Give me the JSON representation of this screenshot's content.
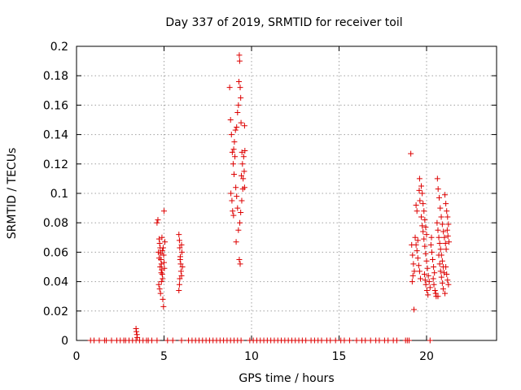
{
  "chart_data": {
    "type": "scatter",
    "title": "Day 337 of 2019, SRMTID for receiver toil",
    "xlabel": "GPS time / hours",
    "ylabel": "SRMTID / TECUs",
    "xlim": [
      0,
      24
    ],
    "ylim": [
      0,
      0.2
    ],
    "xticks": [
      0,
      5,
      10,
      15,
      20
    ],
    "xtick_labels": [
      "0",
      "5",
      "10",
      "15",
      "20"
    ],
    "yticks": [
      0,
      0.02,
      0.04,
      0.06,
      0.08,
      0.1,
      0.12,
      0.14,
      0.16,
      0.18,
      0.2
    ],
    "ytick_labels": [
      "0",
      "0.02",
      "0.04",
      "0.06",
      "0.08",
      "0.1",
      "0.12",
      "0.14",
      "0.16",
      "0.18",
      "0.2"
    ],
    "grid": true,
    "marker": "+",
    "color": "#dd0000",
    "series": [
      {
        "name": "SRMTID",
        "points": [
          [
            0.8,
            0
          ],
          [
            1.0,
            0
          ],
          [
            1.3,
            0
          ],
          [
            1.6,
            0
          ],
          [
            1.7,
            0
          ],
          [
            2.0,
            0
          ],
          [
            2.3,
            0
          ],
          [
            2.5,
            0
          ],
          [
            2.7,
            0
          ],
          [
            2.8,
            0
          ],
          [
            3.0,
            0
          ],
          [
            3.2,
            0
          ],
          [
            3.4,
            0
          ],
          [
            3.6,
            0
          ],
          [
            3.8,
            0
          ],
          [
            4.0,
            0
          ],
          [
            4.1,
            0
          ],
          [
            4.3,
            0
          ],
          [
            4.6,
            0
          ],
          [
            5.2,
            0
          ],
          [
            5.5,
            0
          ],
          [
            6.0,
            0
          ],
          [
            6.4,
            0
          ],
          [
            6.6,
            0
          ],
          [
            6.8,
            0
          ],
          [
            7.0,
            0
          ],
          [
            7.2,
            0
          ],
          [
            7.4,
            0
          ],
          [
            7.6,
            0
          ],
          [
            7.8,
            0
          ],
          [
            8.0,
            0
          ],
          [
            8.2,
            0
          ],
          [
            8.4,
            0
          ],
          [
            8.6,
            0
          ],
          [
            8.8,
            0
          ],
          [
            9.0,
            0
          ],
          [
            9.2,
            0
          ],
          [
            9.4,
            0
          ],
          [
            9.9,
            0
          ],
          [
            10.1,
            0
          ],
          [
            10.3,
            0
          ],
          [
            10.5,
            0
          ],
          [
            10.7,
            0
          ],
          [
            10.9,
            0
          ],
          [
            11.1,
            0
          ],
          [
            11.3,
            0
          ],
          [
            11.5,
            0
          ],
          [
            11.7,
            0
          ],
          [
            11.9,
            0
          ],
          [
            12.1,
            0
          ],
          [
            12.3,
            0
          ],
          [
            12.5,
            0
          ],
          [
            12.7,
            0
          ],
          [
            12.9,
            0
          ],
          [
            13.1,
            0
          ],
          [
            13.4,
            0
          ],
          [
            13.6,
            0
          ],
          [
            13.8,
            0
          ],
          [
            14.0,
            0
          ],
          [
            14.3,
            0
          ],
          [
            14.5,
            0
          ],
          [
            14.8,
            0
          ],
          [
            15.1,
            0
          ],
          [
            15.3,
            0
          ],
          [
            15.6,
            0
          ],
          [
            16.0,
            0
          ],
          [
            16.3,
            0
          ],
          [
            16.5,
            0
          ],
          [
            16.8,
            0
          ],
          [
            17.1,
            0
          ],
          [
            17.3,
            0
          ],
          [
            17.6,
            0
          ],
          [
            17.8,
            0
          ],
          [
            18.1,
            0
          ],
          [
            18.3,
            0
          ],
          [
            18.8,
            0
          ],
          [
            18.9,
            0
          ],
          [
            19.0,
            0
          ],
          [
            20.2,
            0
          ],
          [
            3.4,
            0.008
          ],
          [
            3.42,
            0.006
          ],
          [
            3.45,
            0.004
          ],
          [
            3.47,
            0.002
          ],
          [
            4.6,
            0.08
          ],
          [
            4.65,
            0.082
          ],
          [
            4.72,
            0.069
          ],
          [
            4.75,
            0.066
          ],
          [
            4.78,
            0.063
          ],
          [
            4.8,
            0.059
          ],
          [
            4.82,
            0.055
          ],
          [
            4.85,
            0.052
          ],
          [
            4.87,
            0.048
          ],
          [
            4.9,
            0.045
          ],
          [
            4.92,
            0.042
          ],
          [
            4.7,
            0.038
          ],
          [
            4.75,
            0.035
          ],
          [
            4.8,
            0.032
          ],
          [
            4.68,
            0.06
          ],
          [
            4.72,
            0.056
          ],
          [
            4.78,
            0.05
          ],
          [
            4.84,
            0.046
          ],
          [
            4.88,
            0.07
          ],
          [
            4.95,
            0.063
          ],
          [
            4.98,
            0.058
          ],
          [
            5.0,
            0.053
          ],
          [
            5.02,
            0.049
          ],
          [
            5.05,
            0.067
          ],
          [
            4.93,
            0.028
          ],
          [
            4.97,
            0.023
          ],
          [
            5.0,
            0.088
          ],
          [
            4.85,
            0.04
          ],
          [
            4.9,
            0.061
          ],
          [
            5.85,
            0.072
          ],
          [
            5.88,
            0.068
          ],
          [
            5.9,
            0.063
          ],
          [
            5.93,
            0.057
          ],
          [
            5.95,
            0.052
          ],
          [
            5.97,
            0.047
          ],
          [
            5.9,
            0.042
          ],
          [
            5.88,
            0.038
          ],
          [
            5.85,
            0.034
          ],
          [
            6.0,
            0.065
          ],
          [
            6.02,
            0.06
          ],
          [
            6.05,
            0.05
          ],
          [
            6.0,
            0.044
          ],
          [
            5.92,
            0.055
          ],
          [
            8.75,
            0.172
          ],
          [
            8.8,
            0.15
          ],
          [
            8.85,
            0.14
          ],
          [
            8.9,
            0.128
          ],
          [
            8.95,
            0.12
          ],
          [
            9.0,
            0.113
          ],
          [
            8.82,
            0.1
          ],
          [
            8.88,
            0.095
          ],
          [
            8.92,
            0.088
          ],
          [
            8.97,
            0.085
          ],
          [
            9.02,
            0.135
          ],
          [
            9.05,
            0.125
          ],
          [
            9.1,
            0.104
          ],
          [
            9.15,
            0.098
          ],
          [
            9.2,
            0.09
          ],
          [
            9.25,
            0.075
          ],
          [
            9.12,
            0.067
          ],
          [
            9.3,
            0.055
          ],
          [
            9.35,
            0.052
          ],
          [
            9.3,
            0.194
          ],
          [
            9.32,
            0.19
          ],
          [
            9.28,
            0.176
          ],
          [
            9.35,
            0.172
          ],
          [
            9.38,
            0.165
          ],
          [
            9.25,
            0.16
          ],
          [
            9.4,
            0.148
          ],
          [
            9.45,
            0.128
          ],
          [
            9.48,
            0.12
          ],
          [
            9.42,
            0.112
          ],
          [
            9.5,
            0.103
          ],
          [
            9.44,
            0.095
          ],
          [
            9.38,
            0.087
          ],
          [
            9.33,
            0.08
          ],
          [
            9.2,
            0.155
          ],
          [
            9.15,
            0.145
          ],
          [
            9.08,
            0.143
          ],
          [
            8.98,
            0.13
          ],
          [
            9.6,
            0.146
          ],
          [
            9.55,
            0.125
          ],
          [
            9.58,
            0.115
          ],
          [
            9.52,
            0.11
          ],
          [
            9.6,
            0.104
          ],
          [
            9.62,
            0.129
          ],
          [
            19.1,
            0.127
          ],
          [
            19.15,
            0.065
          ],
          [
            19.2,
            0.058
          ],
          [
            19.25,
            0.052
          ],
          [
            19.3,
            0.047
          ],
          [
            19.22,
            0.044
          ],
          [
            19.18,
            0.04
          ],
          [
            19.28,
            0.021
          ],
          [
            19.35,
            0.07
          ],
          [
            19.4,
            0.065
          ],
          [
            19.45,
            0.061
          ],
          [
            19.5,
            0.056
          ],
          [
            19.55,
            0.051
          ],
          [
            19.6,
            0.047
          ],
          [
            19.65,
            0.042
          ],
          [
            19.7,
            0.105
          ],
          [
            19.75,
            0.1
          ],
          [
            19.8,
            0.093
          ],
          [
            19.85,
            0.088
          ],
          [
            19.9,
            0.082
          ],
          [
            19.95,
            0.077
          ],
          [
            20.0,
            0.072
          ],
          [
            19.6,
            0.11
          ],
          [
            19.58,
            0.102
          ],
          [
            19.62,
            0.095
          ],
          [
            19.7,
            0.084
          ],
          [
            19.75,
            0.078
          ],
          [
            19.8,
            0.074
          ],
          [
            19.85,
            0.069
          ],
          [
            19.9,
            0.064
          ],
          [
            19.95,
            0.059
          ],
          [
            20.0,
            0.054
          ],
          [
            20.05,
            0.049
          ],
          [
            20.1,
            0.044
          ],
          [
            20.15,
            0.04
          ],
          [
            20.2,
            0.036
          ],
          [
            19.88,
            0.045
          ],
          [
            19.92,
            0.041
          ],
          [
            19.96,
            0.038
          ],
          [
            20.02,
            0.034
          ],
          [
            20.08,
            0.031
          ],
          [
            20.3,
            0.06
          ],
          [
            20.35,
            0.055
          ],
          [
            20.4,
            0.05
          ],
          [
            20.45,
            0.046
          ],
          [
            20.38,
            0.042
          ],
          [
            20.42,
            0.038
          ],
          [
            20.48,
            0.034
          ],
          [
            20.55,
            0.03
          ],
          [
            20.6,
            0.08
          ],
          [
            20.65,
            0.075
          ],
          [
            20.7,
            0.07
          ],
          [
            20.75,
            0.066
          ],
          [
            20.8,
            0.062
          ],
          [
            20.85,
            0.058
          ],
          [
            20.9,
            0.054
          ],
          [
            20.95,
            0.05
          ],
          [
            21.0,
            0.046
          ],
          [
            20.62,
            0.11
          ],
          [
            20.66,
            0.103
          ],
          [
            20.72,
            0.097
          ],
          [
            20.78,
            0.09
          ],
          [
            20.84,
            0.084
          ],
          [
            20.9,
            0.079
          ],
          [
            20.96,
            0.074
          ],
          [
            21.02,
            0.07
          ],
          [
            21.08,
            0.066
          ],
          [
            21.12,
            0.062
          ],
          [
            21.05,
            0.099
          ],
          [
            21.1,
            0.093
          ],
          [
            21.15,
            0.088
          ],
          [
            21.2,
            0.084
          ],
          [
            21.25,
            0.079
          ],
          [
            21.18,
            0.075
          ],
          [
            21.22,
            0.071
          ],
          [
            21.28,
            0.067
          ],
          [
            21.1,
            0.05
          ],
          [
            21.15,
            0.045
          ],
          [
            21.2,
            0.041
          ],
          [
            21.25,
            0.038
          ],
          [
            20.7,
            0.058
          ],
          [
            20.75,
            0.052
          ],
          [
            20.8,
            0.047
          ],
          [
            20.85,
            0.043
          ],
          [
            20.9,
            0.039
          ],
          [
            20.95,
            0.035
          ],
          [
            20.65,
            0.03
          ],
          [
            20.52,
            0.032
          ],
          [
            21.05,
            0.032
          ],
          [
            20.25,
            0.065
          ],
          [
            20.28,
            0.07
          ],
          [
            19.5,
            0.068
          ],
          [
            19.4,
            0.092
          ],
          [
            19.45,
            0.088
          ]
        ]
      }
    ]
  }
}
